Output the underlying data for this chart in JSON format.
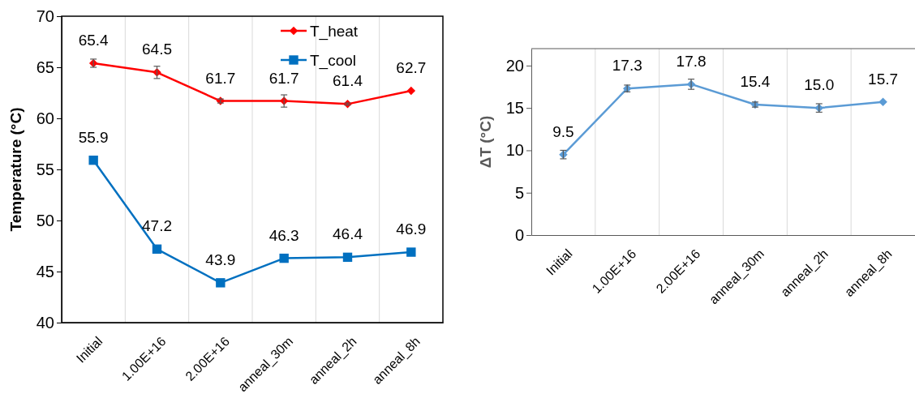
{
  "chart_data": [
    {
      "type": "line",
      "ylabel": "Temperature (°C)",
      "categories": [
        "Initial",
        "1.00E+16",
        "2.00E+16",
        "anneal_30m",
        "anneal_2h",
        "anneal_8h"
      ],
      "series": [
        {
          "name": "T_heat",
          "color": "#ff0000",
          "marker": "diamond",
          "values": [
            65.4,
            64.5,
            61.7,
            61.7,
            61.4,
            62.7
          ],
          "errors": [
            0.4,
            0.6,
            0.2,
            0.6,
            0.1,
            null
          ]
        },
        {
          "name": "T_cool",
          "color": "#0070c0",
          "marker": "square",
          "values": [
            55.9,
            47.2,
            43.9,
            46.3,
            46.4,
            46.9
          ]
        }
      ],
      "ylim": [
        40,
        70
      ],
      "yticks": [
        40,
        45,
        50,
        55,
        60,
        65,
        70
      ],
      "grid": "x",
      "legend": "top right",
      "data_labels": true
    },
    {
      "type": "line",
      "ylabel": "ΔT (°C)",
      "categories": [
        "Initial",
        "1.00E+16",
        "2.00E+16",
        "anneal_30m",
        "anneal_2h",
        "anneal_8h"
      ],
      "series": [
        {
          "color": "#5b9bd5",
          "marker": "diamond",
          "values": [
            9.5,
            17.3,
            17.8,
            15.4,
            15.0,
            15.7
          ],
          "value_labels": [
            "9.5",
            "17.3",
            "17.8",
            "15.4",
            "15.0",
            "15.7"
          ],
          "errors": [
            0.5,
            0.4,
            0.6,
            0.3,
            0.5,
            null
          ]
        }
      ],
      "ylim": [
        0,
        22
      ],
      "yticks": [
        0,
        5,
        10,
        15,
        20
      ],
      "grid": "x",
      "legend": false
    }
  ]
}
